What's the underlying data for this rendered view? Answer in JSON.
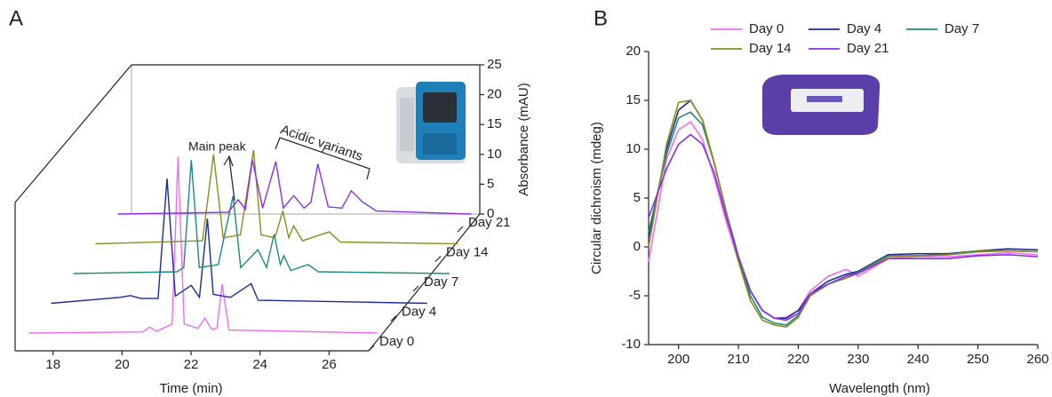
{
  "chart_data": [
    {
      "type": "waterfall",
      "panel": "A",
      "xlabel": "Time (min)",
      "ylabel": "Absorbance (mAU)",
      "xlim": [
        16.9,
        27.15
      ],
      "xticks": [
        18,
        20,
        22,
        24,
        26
      ],
      "ylim": [
        0,
        25
      ],
      "yticks": [
        0,
        5,
        10,
        15,
        20,
        25
      ],
      "annotations": [
        "Main peak",
        "Acidic variants"
      ],
      "series": [
        {
          "name": "Day 0",
          "color": "#f26cf0",
          "x": [
            17.3,
            20.6,
            20.8,
            21.0,
            21.45,
            21.62,
            21.8,
            22.2,
            22.4,
            22.6,
            22.75,
            22.9,
            23.1,
            27.4
          ],
          "values": [
            0,
            0.2,
            1,
            0.3,
            1.5,
            29.5,
            1.5,
            0.8,
            2.5,
            0.6,
            0.8,
            8.2,
            0.5,
            0
          ]
        },
        {
          "name": "Day 4",
          "color": "#1c2b99",
          "x": [
            17.3,
            19.3,
            19.6,
            19.9,
            20.4,
            20.66,
            20.9,
            21.36,
            21.6,
            21.83,
            22.0,
            22.5,
            23.1,
            23.3,
            28.2
          ],
          "values": [
            0,
            1,
            1.3,
            0.8,
            0.8,
            20.9,
            1.2,
            3,
            1,
            14.2,
            1.5,
            1,
            3.3,
            0.5,
            0
          ]
        },
        {
          "name": "Day 7",
          "color": "#1b8a80",
          "x": [
            17.3,
            20.3,
            20.5,
            20.72,
            20.95,
            21.5,
            21.93,
            22.15,
            22.65,
            22.9,
            23.12,
            23.3,
            23.4,
            23.6,
            24.1,
            24.4,
            28.2
          ],
          "values": [
            0,
            0.3,
            1,
            19,
            1,
            1.5,
            13,
            1,
            4,
            1,
            6.6,
            1.5,
            3,
            0.5,
            1.5,
            0.3,
            0
          ]
        },
        {
          "name": "Day 14",
          "color": "#8c8c1c",
          "x": [
            17.3,
            20.4,
            20.72,
            21.0,
            21.5,
            21.88,
            22.1,
            22.5,
            22.73,
            22.9,
            23.04,
            23.3,
            24.07,
            24.4,
            27.8
          ],
          "values": [
            0,
            0.5,
            15,
            1,
            1.5,
            15.7,
            1.5,
            1,
            5.5,
            1,
            3,
            0.5,
            2,
            0.3,
            0
          ]
        },
        {
          "name": "Day 21",
          "color": "#8a2fe6",
          "x": [
            17.3,
            20.5,
            20.79,
            21.0,
            21.2,
            21.5,
            21.88,
            22.1,
            22.4,
            22.7,
            22.9,
            23.1,
            23.4,
            23.8,
            24.07,
            24.4,
            24.8,
            27.55
          ],
          "values": [
            0,
            0.3,
            2.4,
            0.8,
            9.1,
            1,
            8.8,
            1,
            3.1,
            1,
            2,
            8.4,
            1.2,
            1,
            3.9,
            2,
            0.5,
            0
          ]
        }
      ]
    },
    {
      "type": "line",
      "panel": "B",
      "xlabel": "Wavelength (nm)",
      "ylabel": "Circular dichroism (mdeg)",
      "xlim": [
        195,
        260
      ],
      "xticks": [
        200,
        210,
        220,
        230,
        240,
        250,
        260
      ],
      "ylim": [
        -10,
        20
      ],
      "yticks": [
        -10,
        -5,
        0,
        5,
        10,
        15,
        20
      ],
      "legend": "top",
      "x": [
        195,
        198,
        200,
        202,
        204,
        206,
        208,
        210,
        212,
        214,
        216,
        218,
        220,
        222,
        225,
        228,
        230,
        235,
        240,
        245,
        250,
        255,
        260
      ],
      "series": [
        {
          "name": "Day 0",
          "color": "#f26cf0",
          "values": [
            -1.5,
            9,
            12,
            12.8,
            11,
            7,
            2.5,
            -1.5,
            -4.5,
            -6.5,
            -7.3,
            -7.2,
            -6.5,
            -4.5,
            -3,
            -2.3,
            -3,
            -1.2,
            -1,
            -1,
            -0.8,
            -0.6,
            -0.8
          ]
        },
        {
          "name": "Day 4",
          "color": "#1c2b99",
          "values": [
            1,
            10,
            14,
            15,
            13,
            8.5,
            3.5,
            -1,
            -4.5,
            -6.5,
            -7.3,
            -7.3,
            -6.5,
            -4.8,
            -3.5,
            -2.8,
            -2.5,
            -0.8,
            -0.7,
            -0.7,
            -0.4,
            -0.2,
            -0.3
          ]
        },
        {
          "name": "Day 7",
          "color": "#1b8a80",
          "values": [
            1.5,
            9.5,
            13.2,
            13.8,
            12.5,
            8.5,
            3.5,
            -1.2,
            -5,
            -7.2,
            -7.8,
            -8,
            -7,
            -5,
            -3.8,
            -3,
            -2.6,
            -0.9,
            -0.9,
            -0.8,
            -0.5,
            -0.4,
            -0.5
          ]
        },
        {
          "name": "Day 14",
          "color": "#8c8c1c",
          "values": [
            0,
            10.5,
            14.8,
            15,
            13,
            8.5,
            3.5,
            -1.5,
            -5.5,
            -7.5,
            -8,
            -8.2,
            -7.2,
            -5,
            -3.8,
            -3.2,
            -2.7,
            -1,
            -0.9,
            -0.8,
            -0.4,
            -0.4,
            -0.5
          ]
        },
        {
          "name": "Day 21",
          "color": "#8a2fe6",
          "values": [
            3,
            8,
            10.5,
            11.5,
            10.5,
            7.5,
            3,
            -1,
            -4.5,
            -6.5,
            -7.3,
            -7.5,
            -6.8,
            -4.8,
            -3.8,
            -3,
            -2.7,
            -1.2,
            -1.2,
            -1.2,
            -0.9,
            -0.8,
            -1
          ]
        }
      ]
    }
  ]
}
